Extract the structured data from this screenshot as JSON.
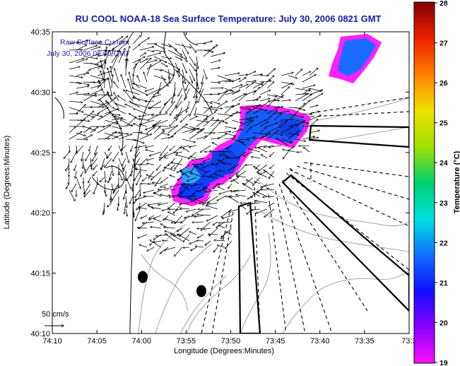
{
  "title": "RU COOL  NOAA-18  Sea Surface Temperature:  July 30, 2006 0821 GMT",
  "legend": {
    "line1": "Raw Surface Current",
    "line2": "July 30, 2006 08:00 GMT"
  },
  "scale_label": "50 cm/s",
  "axes": {
    "xlabel": "Longitude (Degrees:Minutes)",
    "ylabel": "Latitude (Degrees:Minutes)",
    "x_ticks": [
      "74:10",
      "74:05",
      "74:00",
      "73:55",
      "73:50",
      "73:45",
      "73:40",
      "73:35",
      "73:3"
    ],
    "y_ticks": [
      "40:35",
      "40:30",
      "40:25",
      "40:20",
      "40:15",
      "40:10"
    ]
  },
  "colorbar": {
    "label": "Temperature (°C)",
    "min": 19,
    "max": 28,
    "ticks": [
      "28",
      "27",
      "26",
      "25",
      "24",
      "23",
      "22",
      "21",
      "20",
      "19"
    ]
  },
  "colors": {
    "title": "#1a1aa6",
    "legend_text": "#1a1aa6",
    "arrows": "#000000",
    "coast": "#000000",
    "contours": "#888888"
  }
}
